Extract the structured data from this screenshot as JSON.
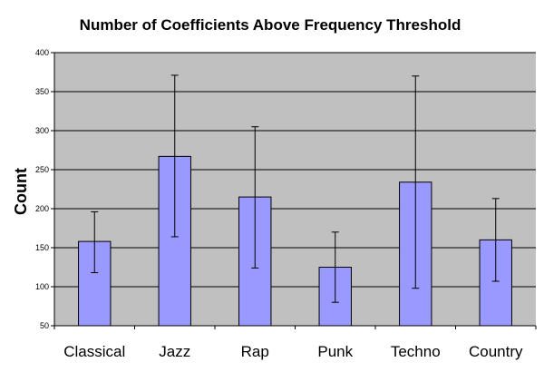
{
  "chart_data": {
    "type": "bar",
    "title": "Number of Coefficients Above Frequency Threshold",
    "ylabel": "Count",
    "xlabel": "",
    "categories": [
      "Classical",
      "Jazz",
      "Rap",
      "Punk",
      "Techno",
      "Country"
    ],
    "values": [
      158,
      267,
      215,
      125,
      234,
      160
    ],
    "error_low": [
      118,
      164,
      124,
      80,
      98,
      107
    ],
    "error_high": [
      196,
      371,
      305,
      170,
      370,
      213
    ],
    "ylim": [
      50,
      400
    ],
    "yticks": [
      "50",
      "100",
      "150",
      "200",
      "250",
      "300",
      "350",
      "400"
    ],
    "grid": true,
    "legend": "none",
    "colors": {
      "bar_fill": "#9999ff",
      "bar_stroke": "#000000",
      "plot_background": "#c0c0c0",
      "gridline": "#000000"
    }
  }
}
